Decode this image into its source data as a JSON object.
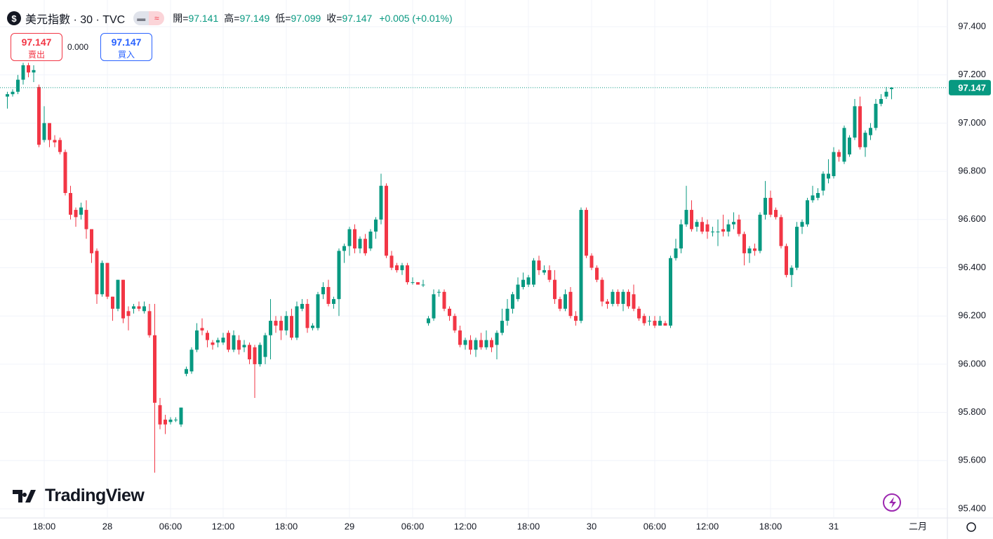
{
  "header": {
    "title": "美元指數 · 30 · TVC",
    "ohlc": [
      {
        "label": "開=",
        "value": 97.141
      },
      {
        "label": "高=",
        "value": 97.149
      },
      {
        "label": "低=",
        "value": 97.099
      },
      {
        "label": "收=",
        "value": 97.147
      }
    ],
    "change": "+0.005 (+0.01%)"
  },
  "trade": {
    "sell_price": 97.147,
    "sell_label": "賣出",
    "spread": "0.000",
    "buy_price": 97.147,
    "buy_label": "買入"
  },
  "logo": "TradingView",
  "chart_data": {
    "type": "candlestick",
    "up_color": "#089981",
    "down_color": "#f23645",
    "grid": true,
    "last_price": 97.147,
    "ylim": [
      95.4,
      97.4
    ],
    "yticks": [
      {
        "value": 95.4,
        "label": "95.400"
      },
      {
        "value": 95.6,
        "label": "95.600"
      },
      {
        "value": 95.8,
        "label": "95.800"
      },
      {
        "value": 96.0,
        "label": "96.000"
      },
      {
        "value": 96.2,
        "label": "96.200"
      },
      {
        "value": 96.4,
        "label": "96.400"
      },
      {
        "value": 96.6,
        "label": "96.600"
      },
      {
        "value": 96.8,
        "label": "96.800"
      },
      {
        "value": 97.0,
        "label": "97.000"
      },
      {
        "value": 97.2,
        "label": "97.200"
      },
      {
        "value": 97.4,
        "label": "97.400"
      }
    ],
    "categories": [
      null,
      null,
      null,
      null,
      null,
      null,
      null,
      "18:00",
      null,
      null,
      null,
      null,
      null,
      null,
      null,
      null,
      null,
      null,
      null,
      "28",
      null,
      null,
      null,
      null,
      null,
      null,
      null,
      null,
      null,
      null,
      null,
      "06:00",
      null,
      null,
      null,
      null,
      null,
      null,
      null,
      null,
      null,
      "12:00",
      null,
      null,
      null,
      null,
      null,
      null,
      null,
      null,
      null,
      null,
      null,
      "18:00",
      null,
      null,
      null,
      null,
      null,
      null,
      null,
      null,
      null,
      null,
      null,
      "29",
      null,
      null,
      null,
      null,
      null,
      null,
      null,
      null,
      null,
      null,
      null,
      "06:00",
      null,
      null,
      null,
      null,
      null,
      null,
      null,
      null,
      null,
      "12:00",
      null,
      null,
      null,
      null,
      null,
      null,
      null,
      null,
      null,
      null,
      null,
      "18:00",
      null,
      null,
      null,
      null,
      null,
      null,
      null,
      null,
      null,
      null,
      null,
      "30",
      null,
      null,
      null,
      null,
      null,
      null,
      null,
      null,
      null,
      null,
      null,
      "06:00",
      null,
      null,
      null,
      null,
      null,
      null,
      null,
      null,
      null,
      "12:00",
      null,
      null,
      null,
      null,
      null,
      null,
      null,
      null,
      null,
      null,
      null,
      "18:00",
      null,
      null,
      null,
      null,
      null,
      null,
      null,
      null,
      null,
      null,
      null,
      "31",
      null,
      null,
      null,
      null,
      null,
      null,
      null,
      null,
      null,
      null,
      null,
      null,
      null,
      null,
      null,
      "二月"
    ],
    "open": [
      97.11,
      97.12,
      97.13,
      97.18,
      97.24,
      97.21,
      97.15,
      96.93,
      97.0,
      96.93,
      96.93,
      96.88,
      96.71,
      96.64,
      96.62,
      96.64,
      96.56,
      96.47,
      96.29,
      96.42,
      96.28,
      96.23,
      96.35,
      96.22,
      96.23,
      96.24,
      96.22,
      96.22,
      96.12,
      95.83,
      95.77,
      95.76,
      95.77,
      95.75,
      95.96,
      95.97,
      96.06,
      96.15,
      96.13,
      96.09,
      96.09,
      96.09,
      96.13,
      96.06,
      96.1,
      96.07,
      96.08,
      96.07,
      96.0,
      96.03,
      96.12,
      96.18,
      96.18,
      96.14,
      96.2,
      96.11,
      96.23,
      96.25,
      96.15,
      96.15,
      96.29,
      96.32,
      96.25,
      96.27,
      96.47,
      96.49,
      96.56,
      96.48,
      96.52,
      96.48,
      96.55,
      96.6,
      96.74,
      96.45,
      96.41,
      96.39,
      96.41,
      96.34,
      96.34,
      96.33,
      96.17,
      96.19,
      96.3,
      96.3,
      96.23,
      96.2,
      96.14,
      96.08,
      96.1,
      96.06,
      96.1,
      96.07,
      96.1,
      96.08,
      96.13,
      96.18,
      96.23,
      96.27,
      96.32,
      96.33,
      96.33,
      96.43,
      96.38,
      96.39,
      96.35,
      96.27,
      96.23,
      96.3,
      96.2,
      96.18,
      96.64,
      96.45,
      96.4,
      96.35,
      96.26,
      96.25,
      96.3,
      96.25,
      96.3,
      96.29,
      96.23,
      96.2,
      96.18,
      96.18,
      96.16,
      96.17,
      96.16,
      96.44,
      96.48,
      96.58,
      96.64,
      96.57,
      96.59,
      96.58,
      96.55,
      96.55,
      96.56,
      96.55,
      96.58,
      96.6,
      96.54,
      96.46,
      96.48,
      96.47,
      96.62,
      96.69,
      96.64,
      96.61,
      96.49,
      96.37,
      96.4,
      96.57,
      96.58,
      96.68,
      96.69,
      96.72,
      96.77,
      96.78,
      96.88,
      96.84,
      96.87,
      96.94,
      97.07,
      96.9,
      96.95,
      96.98,
      97.08,
      97.11,
      97.141,
      null,
      null,
      null,
      null,
      null
    ],
    "high": [
      97.13,
      97.14,
      97.2,
      97.25,
      97.25,
      97.24,
      97.16,
      97.07,
      97.0,
      96.95,
      96.94,
      96.89,
      96.74,
      96.65,
      96.67,
      96.68,
      96.56,
      96.48,
      96.43,
      96.42,
      96.28,
      96.35,
      96.35,
      96.24,
      96.25,
      96.26,
      96.26,
      96.25,
      96.25,
      95.86,
      95.79,
      95.78,
      95.78,
      95.82,
      95.99,
      96.07,
      96.17,
      96.19,
      96.14,
      96.1,
      96.11,
      96.13,
      96.14,
      96.14,
      96.12,
      96.1,
      96.09,
      96.08,
      96.09,
      96.13,
      96.27,
      96.2,
      96.2,
      96.22,
      96.23,
      96.26,
      96.27,
      96.27,
      96.17,
      96.3,
      96.34,
      96.35,
      96.28,
      96.48,
      96.5,
      96.57,
      96.58,
      96.53,
      96.54,
      96.56,
      96.61,
      96.79,
      96.75,
      96.47,
      96.42,
      96.42,
      96.42,
      96.36,
      96.34,
      96.35,
      96.2,
      96.31,
      96.31,
      96.31,
      96.24,
      96.21,
      96.16,
      96.11,
      96.12,
      96.11,
      96.13,
      96.14,
      96.11,
      96.14,
      96.23,
      96.27,
      96.3,
      96.36,
      96.38,
      96.37,
      96.44,
      96.45,
      96.41,
      96.41,
      96.39,
      96.28,
      96.31,
      96.32,
      96.22,
      96.65,
      96.65,
      96.46,
      96.41,
      96.36,
      96.27,
      96.31,
      96.31,
      96.31,
      96.31,
      96.33,
      96.24,
      96.21,
      96.2,
      96.2,
      96.2,
      96.18,
      96.45,
      96.52,
      96.6,
      96.74,
      96.68,
      96.6,
      96.61,
      96.6,
      96.57,
      96.6,
      96.62,
      96.6,
      96.63,
      96.62,
      96.55,
      96.49,
      96.5,
      96.63,
      96.76,
      96.72,
      96.65,
      96.62,
      96.5,
      96.41,
      96.59,
      96.6,
      96.69,
      96.74,
      96.73,
      96.8,
      96.85,
      96.9,
      96.89,
      96.99,
      96.95,
      97.1,
      97.11,
      96.97,
      97.0,
      97.1,
      97.12,
      97.15,
      97.149,
      null,
      null,
      null,
      null,
      null
    ],
    "low": [
      97.06,
      97.11,
      97.12,
      97.16,
      97.19,
      97.17,
      96.9,
      96.92,
      96.9,
      96.9,
      96.87,
      96.7,
      96.6,
      96.57,
      96.6,
      96.52,
      96.42,
      96.25,
      96.28,
      96.27,
      96.18,
      96.22,
      96.17,
      96.14,
      96.21,
      96.22,
      96.21,
      96.11,
      95.55,
      95.73,
      95.71,
      95.75,
      95.76,
      95.74,
      95.95,
      95.96,
      96.05,
      96.12,
      96.07,
      96.06,
      96.07,
      96.08,
      96.05,
      96.05,
      96.04,
      96.05,
      96.0,
      95.86,
      95.99,
      96.0,
      96.02,
      96.13,
      96.1,
      96.12,
      96.1,
      96.1,
      96.22,
      96.13,
      96.14,
      96.14,
      96.27,
      96.24,
      96.23,
      96.2,
      96.42,
      96.45,
      96.46,
      96.46,
      96.45,
      96.47,
      96.52,
      96.58,
      96.44,
      96.39,
      96.38,
      96.37,
      96.33,
      96.33,
      96.33,
      96.32,
      96.16,
      96.18,
      96.28,
      96.22,
      96.18,
      96.13,
      96.07,
      96.06,
      96.04,
      96.03,
      96.06,
      96.06,
      96.05,
      96.02,
      96.12,
      96.16,
      96.21,
      96.26,
      96.31,
      96.32,
      96.32,
      96.37,
      96.37,
      96.34,
      96.25,
      96.22,
      96.22,
      96.19,
      96.16,
      96.17,
      96.44,
      96.39,
      96.34,
      96.24,
      96.23,
      96.24,
      96.24,
      96.22,
      96.23,
      96.22,
      96.18,
      96.16,
      96.16,
      96.15,
      96.16,
      96.16,
      96.15,
      96.43,
      96.46,
      96.57,
      96.55,
      96.55,
      96.54,
      96.52,
      96.53,
      96.49,
      96.53,
      96.53,
      96.56,
      96.53,
      96.41,
      96.42,
      96.45,
      96.46,
      96.6,
      96.61,
      96.6,
      96.48,
      96.36,
      96.32,
      96.39,
      96.54,
      96.57,
      96.67,
      96.68,
      96.7,
      96.75,
      96.77,
      96.84,
      96.83,
      96.86,
      96.93,
      96.89,
      96.86,
      96.93,
      96.97,
      97.07,
      97.1,
      97.099,
      null,
      null,
      null,
      null,
      null
    ],
    "close": [
      97.12,
      97.13,
      97.18,
      97.24,
      97.21,
      97.22,
      96.91,
      97.0,
      96.93,
      96.92,
      96.88,
      96.71,
      96.62,
      96.61,
      96.65,
      96.56,
      96.46,
      96.29,
      96.42,
      96.28,
      96.23,
      96.35,
      96.19,
      96.2,
      96.24,
      96.23,
      96.24,
      96.12,
      95.84,
      95.75,
      95.75,
      95.77,
      95.77,
      95.82,
      95.98,
      96.06,
      96.14,
      96.14,
      96.1,
      96.08,
      96.1,
      96.11,
      96.06,
      96.12,
      96.06,
      96.08,
      96.02,
      96.0,
      96.08,
      96.12,
      96.18,
      96.16,
      96.14,
      96.2,
      96.11,
      96.24,
      96.25,
      96.15,
      96.16,
      96.29,
      96.32,
      96.25,
      96.27,
      96.47,
      96.49,
      96.56,
      96.48,
      96.52,
      96.46,
      96.55,
      96.6,
      96.74,
      96.45,
      96.4,
      96.39,
      96.41,
      96.34,
      96.34,
      96.33,
      96.33,
      96.19,
      96.29,
      96.3,
      96.23,
      96.2,
      96.14,
      96.08,
      96.1,
      96.06,
      96.1,
      96.07,
      96.1,
      96.07,
      96.13,
      96.18,
      96.23,
      96.29,
      96.33,
      96.35,
      96.36,
      96.43,
      96.39,
      96.39,
      96.35,
      96.27,
      96.23,
      96.29,
      96.2,
      96.18,
      96.64,
      96.45,
      96.4,
      96.35,
      96.26,
      96.25,
      96.3,
      96.25,
      96.3,
      96.24,
      96.23,
      96.19,
      96.17,
      96.18,
      96.16,
      96.18,
      96.16,
      96.44,
      96.48,
      96.58,
      96.64,
      96.56,
      96.59,
      96.55,
      96.55,
      96.55,
      96.55,
      96.55,
      96.58,
      96.59,
      96.54,
      96.46,
      96.48,
      96.47,
      96.62,
      96.69,
      96.62,
      96.61,
      96.49,
      96.37,
      96.4,
      96.57,
      96.59,
      96.68,
      96.7,
      96.71,
      96.79,
      96.79,
      96.88,
      96.86,
      96.98,
      96.94,
      97.07,
      96.9,
      96.96,
      96.98,
      97.08,
      97.1,
      97.13,
      97.147,
      null,
      null,
      null,
      null,
      null
    ]
  }
}
